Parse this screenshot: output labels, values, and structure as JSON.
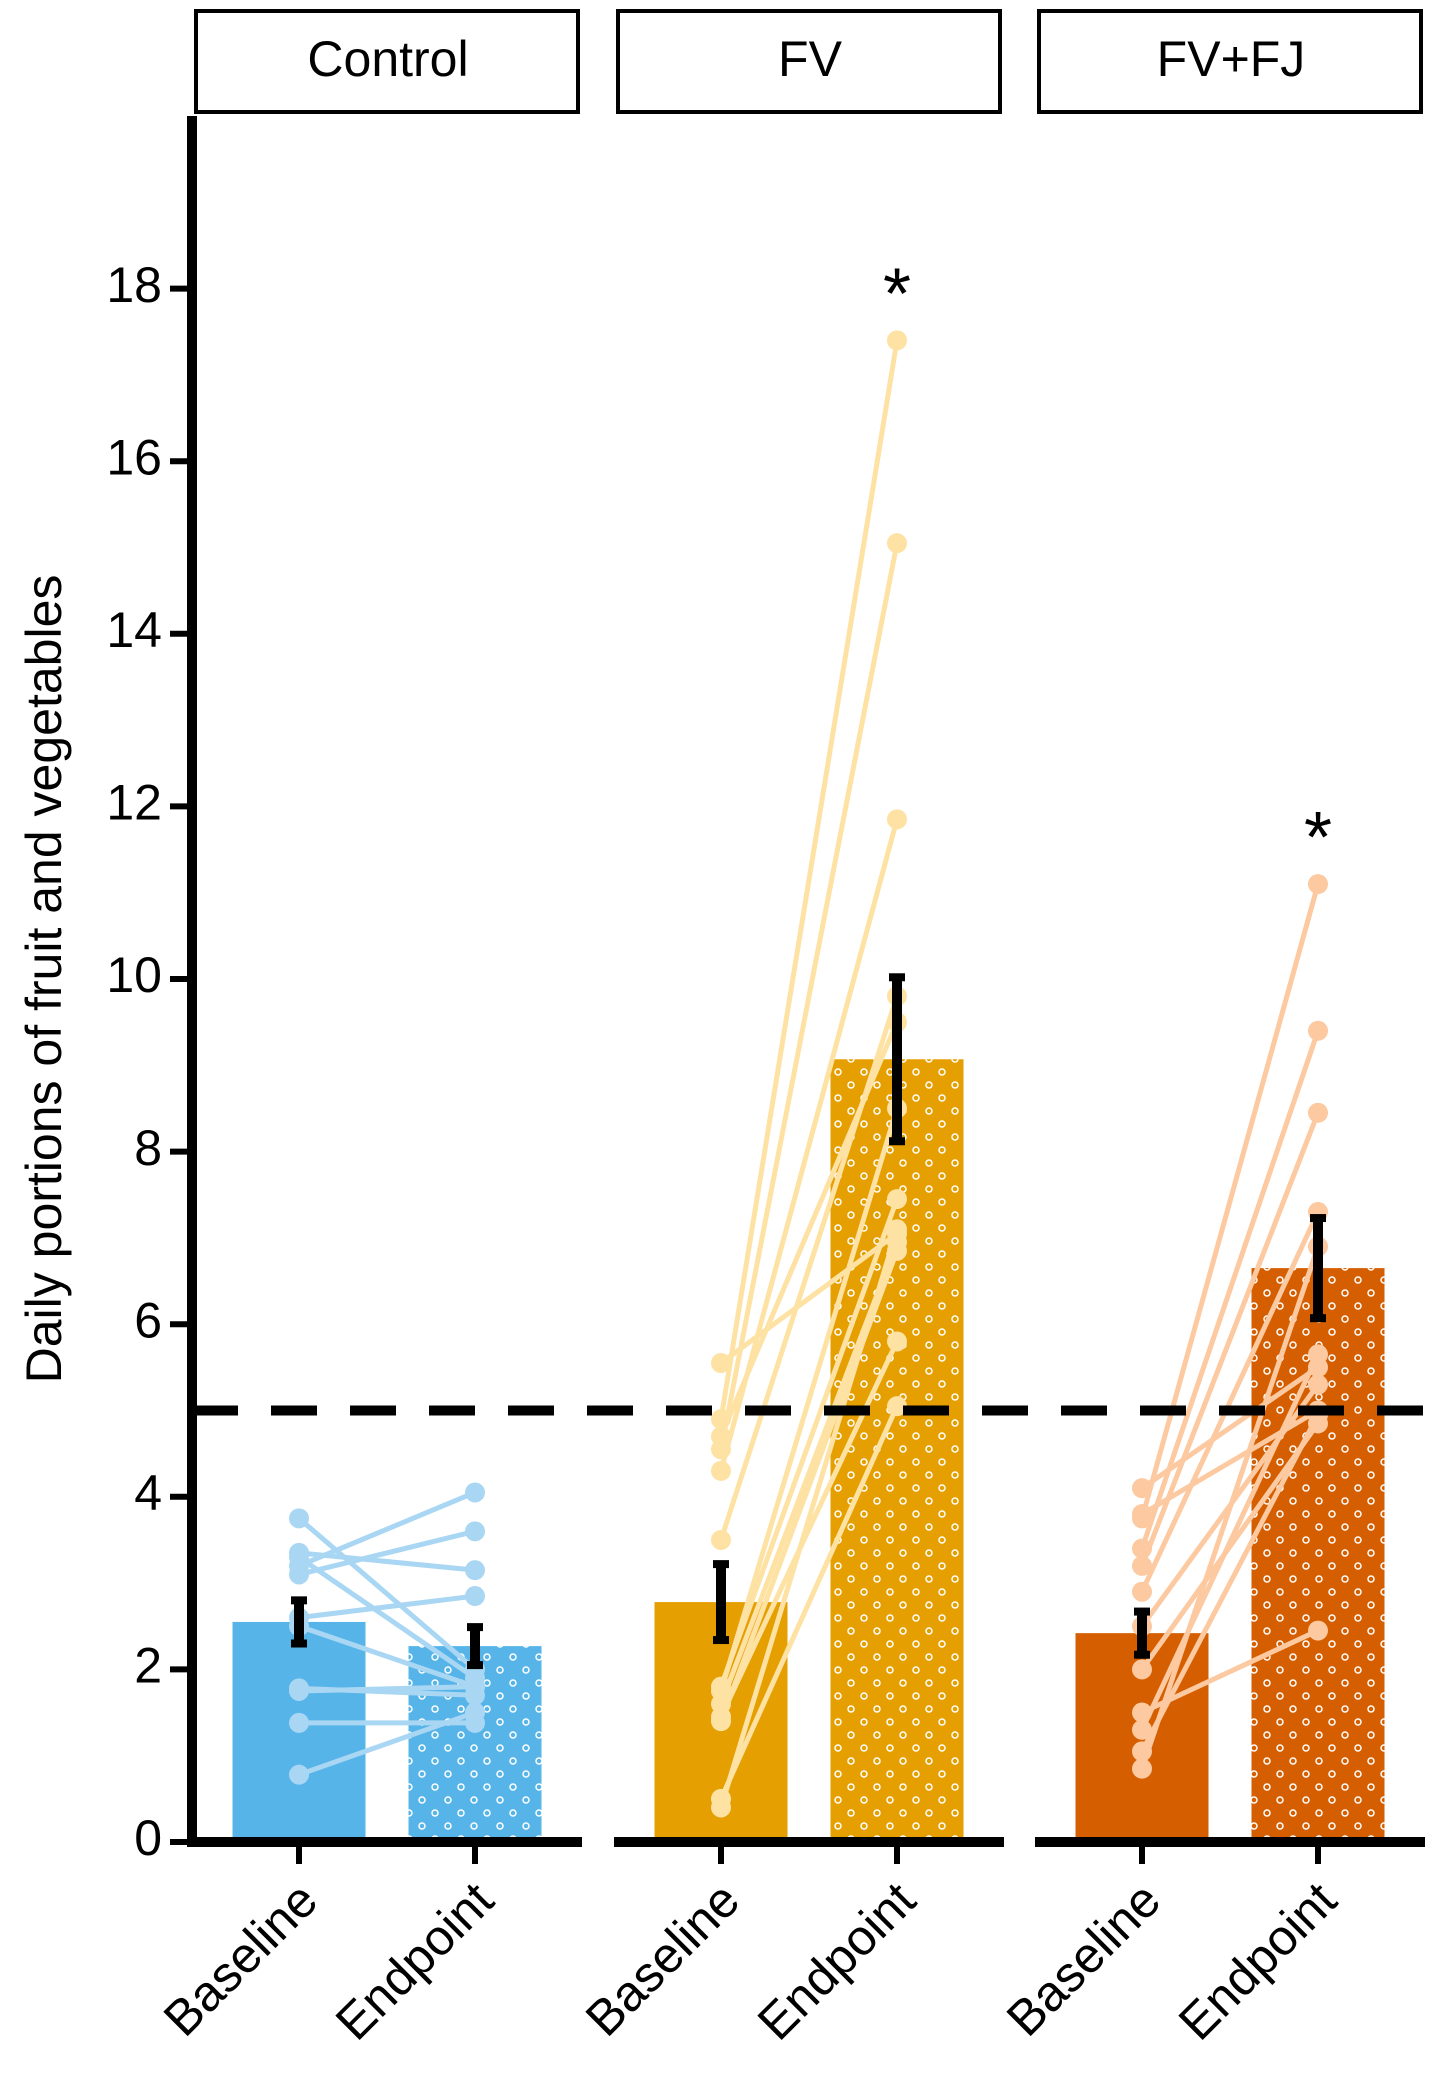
{
  "chart_data": {
    "type": "bar",
    "ylabel": "Daily portions of fruit and vegetables",
    "ylim": [
      0,
      20
    ],
    "yticks": [
      0,
      2,
      4,
      6,
      8,
      10,
      12,
      14,
      16,
      18
    ],
    "threshold": 5,
    "panels": [
      {
        "title": "Control",
        "categories": [
          "Baseline",
          "Endpoint"
        ],
        "values": [
          2.55,
          2.27
        ],
        "errors": [
          0.25,
          0.22
        ],
        "color": "#56b4e9",
        "point_color": "#a9d7f3",
        "pattern": [
          null,
          "dots"
        ],
        "annotations": [
          null,
          null
        ],
        "baseline_points": [
          3.75,
          3.35,
          3.2,
          3.1,
          3.3,
          2.6,
          2.5,
          1.75,
          1.78,
          1.38,
          0.78
        ],
        "endpoint_points": [
          2.0,
          3.15,
          4.05,
          3.6,
          1.9,
          2.85,
          1.8,
          1.8,
          1.7,
          1.38,
          1.5
        ]
      },
      {
        "title": "FV",
        "categories": [
          "Baseline",
          "Endpoint"
        ],
        "values": [
          2.78,
          9.07
        ],
        "errors": [
          0.44,
          0.95
        ],
        "color": "#e69f00",
        "point_color": "#fde2a3",
        "pattern": [
          null,
          "dots"
        ],
        "annotations": [
          null,
          "*"
        ],
        "baseline_points": [
          5.55,
          4.9,
          4.55,
          4.3,
          3.5,
          1.8,
          1.6,
          1.4,
          1.45,
          0.5,
          0.4,
          4.7,
          1.75
        ],
        "endpoint_points": [
          7.05,
          17.4,
          15.05,
          11.85,
          9.8,
          7.45,
          6.95,
          6.85,
          5.8,
          5.05,
          7.1,
          9.5,
          8.5
        ]
      },
      {
        "title": "FV+FJ",
        "categories": [
          "Baseline",
          "Endpoint"
        ],
        "values": [
          2.42,
          6.65
        ],
        "errors": [
          0.25,
          0.58
        ],
        "color": "#d55e00",
        "point_color": "#fcc9a0",
        "pattern": [
          null,
          "dots"
        ],
        "annotations": [
          null,
          "*"
        ],
        "baseline_points": [
          4.1,
          3.75,
          3.4,
          3.2,
          2.9,
          2.0,
          1.5,
          1.3,
          1.05,
          0.85,
          3.8,
          2.5
        ],
        "endpoint_points": [
          5.5,
          11.1,
          9.4,
          8.45,
          7.3,
          4.85,
          2.45,
          5.65,
          4.95,
          6.9,
          5.0,
          5.3
        ]
      }
    ]
  }
}
